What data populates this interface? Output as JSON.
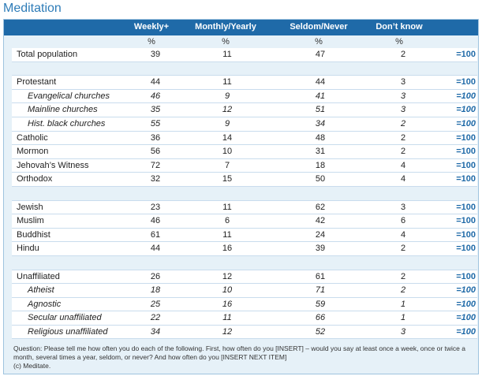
{
  "title": "Meditation",
  "columns": [
    "Weekly+",
    "Monthly/Yearly",
    "Seldom/Never",
    "Don’t know"
  ],
  "unit": "%",
  "rows": [
    {
      "label": "Total population",
      "values": [
        "39",
        "11",
        "47",
        "2"
      ],
      "total": "=100",
      "sub": false
    },
    {
      "spacer": true
    },
    {
      "label": "Protestant",
      "values": [
        "44",
        "11",
        "44",
        "3"
      ],
      "total": "=100",
      "sub": false
    },
    {
      "label": "Evangelical churches",
      "values": [
        "46",
        "9",
        "41",
        "3"
      ],
      "total": "=100",
      "sub": true
    },
    {
      "label": "Mainline churches",
      "values": [
        "35",
        "12",
        "51",
        "3"
      ],
      "total": "=100",
      "sub": true
    },
    {
      "label": "Hist. black churches",
      "values": [
        "55",
        "9",
        "34",
        "2"
      ],
      "total": "=100",
      "sub": true
    },
    {
      "label": "Catholic",
      "values": [
        "36",
        "14",
        "48",
        "2"
      ],
      "total": "=100",
      "sub": false
    },
    {
      "label": "Mormon",
      "values": [
        "56",
        "10",
        "31",
        "2"
      ],
      "total": "=100",
      "sub": false
    },
    {
      "label": "Jehovah’s Witness",
      "values": [
        "72",
        "7",
        "18",
        "4"
      ],
      "total": "=100",
      "sub": false
    },
    {
      "label": "Orthodox",
      "values": [
        "32",
        "15",
        "50",
        "4"
      ],
      "total": "=100",
      "sub": false
    },
    {
      "spacer": true
    },
    {
      "label": "Jewish",
      "values": [
        "23",
        "11",
        "62",
        "3"
      ],
      "total": "=100",
      "sub": false
    },
    {
      "label": "Muslim",
      "values": [
        "46",
        "6",
        "42",
        "6"
      ],
      "total": "=100",
      "sub": false
    },
    {
      "label": "Buddhist",
      "values": [
        "61",
        "11",
        "24",
        "4"
      ],
      "total": "=100",
      "sub": false
    },
    {
      "label": "Hindu",
      "values": [
        "44",
        "16",
        "39",
        "2"
      ],
      "total": "=100",
      "sub": false
    },
    {
      "spacer": true
    },
    {
      "label": "Unaffiliated",
      "values": [
        "26",
        "12",
        "61",
        "2"
      ],
      "total": "=100",
      "sub": false
    },
    {
      "label": "Atheist",
      "values": [
        "18",
        "10",
        "71",
        "2"
      ],
      "total": "=100",
      "sub": true
    },
    {
      "label": "Agnostic",
      "values": [
        "25",
        "16",
        "59",
        "1"
      ],
      "total": "=100",
      "sub": true
    },
    {
      "label": "Secular unaffiliated",
      "values": [
        "22",
        "11",
        "66",
        "1"
      ],
      "total": "=100",
      "sub": true
    },
    {
      "label": "Religious unaffiliated",
      "values": [
        "34",
        "12",
        "52",
        "3"
      ],
      "total": "=100",
      "sub": true
    }
  ],
  "footnote": "Question: Please tell me how often you do each of the following.  First, how often do you [INSERT] – would you say at least once a week, once or twice a month, several times a year, seldom, or never? And how often do you [INSERT NEXT ITEM]",
  "footnote_c": "(c) Meditate."
}
